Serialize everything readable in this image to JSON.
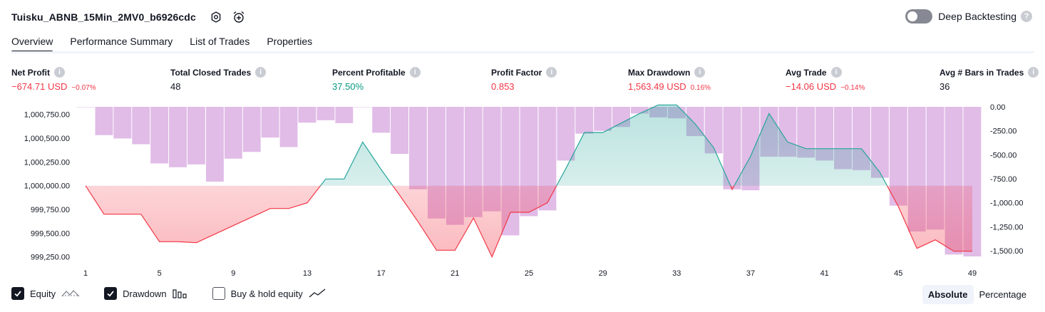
{
  "header": {
    "title": "Tuisku_ABNB_15Min_2MV0_b6926cdc",
    "icons": [
      "settings-icon",
      "add-alert-icon"
    ]
  },
  "deep_backtesting": {
    "label": "Deep Backtesting",
    "enabled": false,
    "help": "?"
  },
  "tabs": [
    {
      "label": "Overview",
      "active": true
    },
    {
      "label": "Performance Summary",
      "active": false
    },
    {
      "label": "List of Trades",
      "active": false
    },
    {
      "label": "Properties",
      "active": false
    }
  ],
  "metrics": {
    "net_profit": {
      "label": "Net Profit",
      "value": "−674.71 USD",
      "pct": "−0.07%"
    },
    "total_closed_trades": {
      "label": "Total Closed Trades",
      "value": "48"
    },
    "percent_profitable": {
      "label": "Percent Profitable",
      "value": "37.50%"
    },
    "profit_factor": {
      "label": "Profit Factor",
      "value": "0.853"
    },
    "max_drawdown": {
      "label": "Max Drawdown",
      "value": "1,563.49 USD",
      "pct": "0.16%"
    },
    "avg_trade": {
      "label": "Avg Trade",
      "value": "−14.06 USD",
      "pct": "−0.14%"
    },
    "avg_bars": {
      "label": "Avg # Bars in Trades",
      "value": "36"
    },
    "info_glyph": "i"
  },
  "colors": {
    "equity_pos": "#26a69a",
    "equity_neg": "#f23645",
    "drawdown_bar": "#ce93d8",
    "text": "#131722"
  },
  "chart_data": {
    "type": "line",
    "x": [
      1,
      2,
      3,
      4,
      5,
      6,
      7,
      8,
      9,
      10,
      11,
      12,
      13,
      14,
      15,
      16,
      17,
      18,
      19,
      20,
      21,
      22,
      23,
      24,
      25,
      26,
      27,
      28,
      29,
      30,
      31,
      32,
      33,
      34,
      35,
      36,
      37,
      38,
      39,
      40,
      41,
      42,
      43,
      44,
      45,
      46,
      47,
      48,
      49
    ],
    "x_ticks": [
      1,
      5,
      9,
      13,
      17,
      21,
      25,
      29,
      33,
      37,
      41,
      45,
      49
    ],
    "series": [
      {
        "axis": "left",
        "values": [
          1000000,
          999700,
          999700,
          999700,
          999410,
          999410,
          999400,
          999490,
          999580,
          999670,
          999760,
          999760,
          999820,
          1000070,
          1000070,
          1000460,
          1000170,
          999900,
          999620,
          999320,
          999320,
          999660,
          999250,
          999720,
          999720,
          999820,
          1000180,
          1000560,
          1000560,
          1000660,
          1000760,
          1000850,
          1000850,
          1000650,
          1000400,
          999960,
          1000310,
          1000760,
          1000460,
          1000390,
          1000390,
          1000390,
          1000390,
          1000140,
          999780,
          999340,
          999430,
          999310,
          999310
        ]
      },
      {
        "axis": "right",
        "type": "bar",
        "values": [
          0,
          -295,
          -330,
          -390,
          -590,
          -630,
          -600,
          -780,
          -540,
          -470,
          -320,
          -420,
          -165,
          -140,
          -170,
          0,
          -270,
          -490,
          -860,
          -1165,
          -1230,
          -1150,
          -1090,
          -1340,
          -1140,
          -1080,
          -560,
          -280,
          -250,
          -210,
          -70,
          -110,
          -120,
          -305,
          -485,
          -860,
          -870,
          -520,
          -520,
          -530,
          -560,
          -650,
          -660,
          -740,
          -1030,
          -1300,
          -1280,
          -1540,
          -1560
        ]
      }
    ],
    "y_left_ticks": [
      "1,000,750.00",
      "1,000,500.00",
      "1,000,250.00",
      "1,000,000.00",
      "999,750.00",
      "999,500.00",
      "999,250.00"
    ],
    "y_right_ticks": [
      "0.00",
      "-250.00",
      "-500.00",
      "-750.00",
      "-1,000.00",
      "-1,250.00",
      "-1,500.00"
    ],
    "y_left_range": [
      999180,
      1000830
    ],
    "y_right_range": [
      -1560,
      0
    ],
    "baseline": 1000000
  },
  "legend": [
    {
      "label": "Equity",
      "checked": true,
      "icon": "equity-line-icon"
    },
    {
      "label": "Drawdown",
      "checked": true,
      "icon": "drawdown-bars-icon"
    },
    {
      "label": "Buy & hold equity",
      "checked": false,
      "icon": "buy-hold-line-icon"
    }
  ],
  "modes": [
    {
      "label": "Absolute",
      "active": true
    },
    {
      "label": "Percentage",
      "active": false
    }
  ]
}
